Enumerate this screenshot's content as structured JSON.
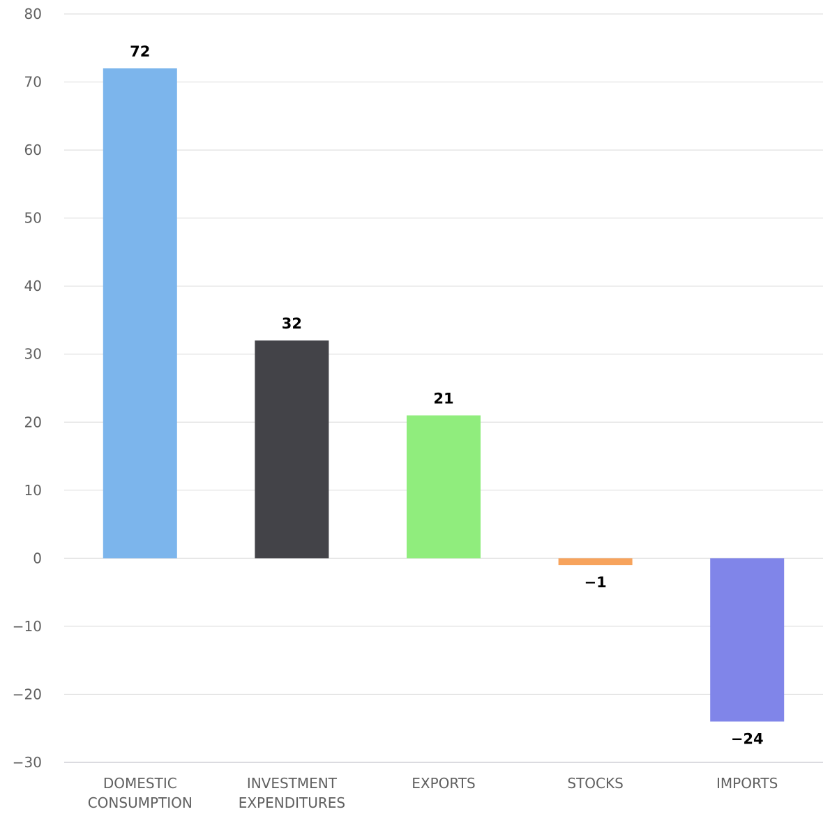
{
  "chart_data": {
    "type": "bar",
    "categories": [
      [
        "DOMESTIC",
        "CONSUMPTION"
      ],
      [
        "INVESTMENT",
        "EXPENDITURES"
      ],
      [
        "EXPORTS"
      ],
      [
        "STOCKS"
      ],
      [
        "IMPORTS"
      ]
    ],
    "values": [
      72,
      32,
      21,
      -1,
      -24
    ],
    "value_labels": [
      "72",
      "32",
      "21",
      "−1",
      "−24"
    ],
    "colors": [
      "#7cb5ec",
      "#434348",
      "#90ed7d",
      "#f7a35c",
      "#8085e9"
    ],
    "title": "",
    "xlabel": "",
    "ylabel": "",
    "ylim": [
      -30,
      80
    ],
    "y_ticks": [
      80,
      70,
      60,
      50,
      40,
      30,
      20,
      10,
      0,
      -10,
      -20,
      -30
    ],
    "y_tick_labels": [
      "80",
      "70",
      "60",
      "50",
      "40",
      "30",
      "20",
      "10",
      "0",
      "−10",
      "−20",
      "−30"
    ],
    "grid": true,
    "legend": "none"
  }
}
